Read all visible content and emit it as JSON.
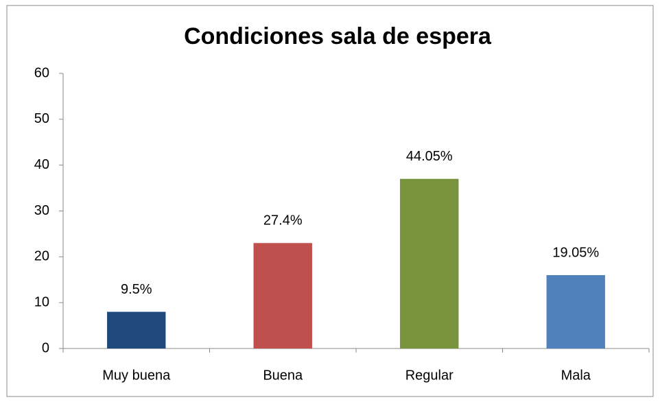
{
  "chart_data": {
    "type": "bar",
    "title": "Condiciones sala de espera",
    "categories": [
      "Muy buena",
      "Buena",
      "Regular",
      "Mala"
    ],
    "values": [
      8,
      23,
      37,
      16
    ],
    "percent_labels": [
      "9.5%",
      "27.4%",
      "44.05%",
      "19.05%"
    ],
    "colors": [
      "#1f497d",
      "#c0504d",
      "#77933c",
      "#4f81bd"
    ],
    "ylim": [
      0,
      60
    ],
    "yticks": [
      0,
      10,
      20,
      30,
      40,
      50,
      60
    ],
    "grid": false
  }
}
